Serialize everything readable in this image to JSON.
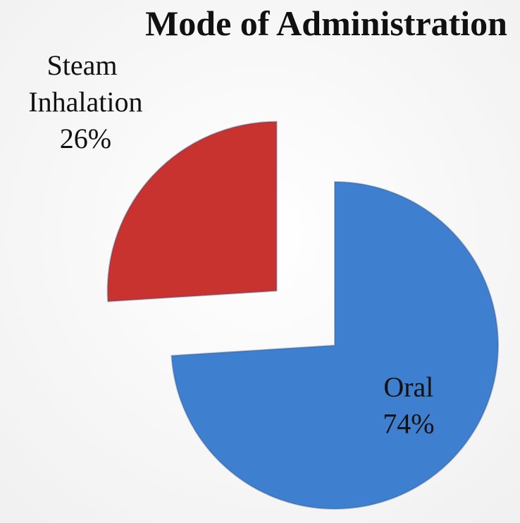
{
  "chart_data": {
    "type": "pie",
    "title": "Mode of Administration",
    "categories": [
      "Oral",
      "Steam Inhalation"
    ],
    "values": [
      74,
      26
    ],
    "value_labels": [
      "74%",
      "26%"
    ],
    "colors": [
      "#3f7fcf",
      "#c8332f"
    ],
    "explode": [
      false,
      true
    ]
  }
}
